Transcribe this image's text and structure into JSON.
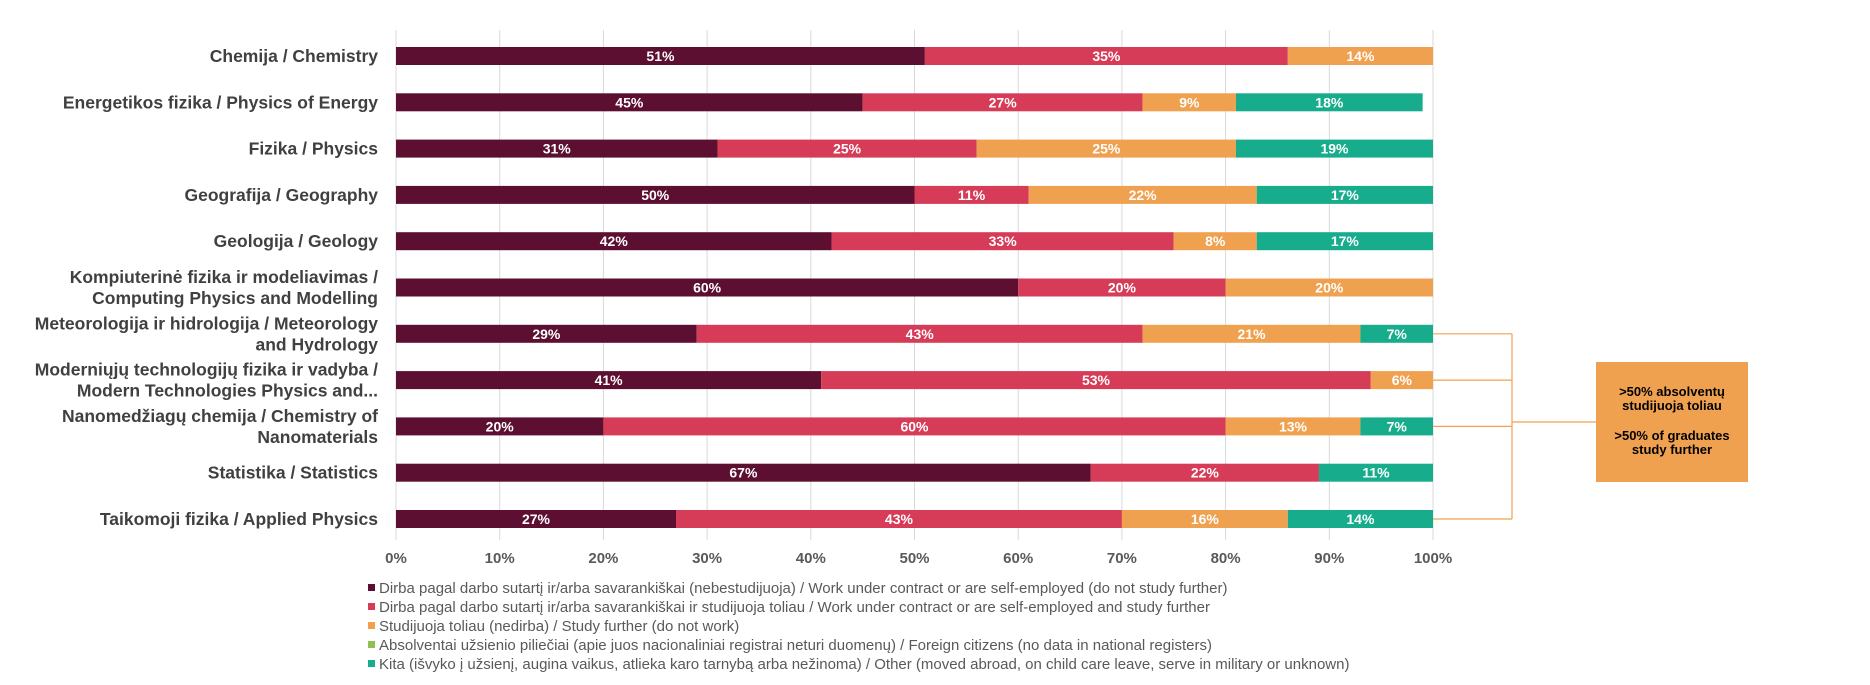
{
  "chart_data": {
    "type": "bar",
    "orientation": "horizontal",
    "stacked": "percent",
    "categories": [
      [
        "Chemija / Chemistry"
      ],
      [
        "Energetikos fizika / Physics of Energy"
      ],
      [
        "Fizika / Physics"
      ],
      [
        "Geografija / Geography"
      ],
      [
        "Geologija / Geology"
      ],
      [
        "Kompiuterinė fizika ir modeliavimas /",
        "Computing Physics and Modelling"
      ],
      [
        "Meteorologija ir hidrologija / Meteorology",
        "and Hydrology"
      ],
      [
        "Moderniųjų technologijų fizika ir vadyba /",
        "Modern Technologies Physics and..."
      ],
      [
        "Nanomedžiagų chemija / Chemistry of",
        "Nanomaterials"
      ],
      [
        "Statistika / Statistics"
      ],
      [
        "Taikomoji fizika / Applied Physics"
      ]
    ],
    "series": [
      {
        "name": "Dirba pagal darbo sutartį ir/arba savarankiškai (nebestudijuoja) / Work under contract or are self-employed (do not study further)",
        "color": "#5c0f30",
        "values": [
          51,
          45,
          31,
          50,
          42,
          60,
          29,
          41,
          20,
          67,
          27
        ]
      },
      {
        "name": "Dirba pagal darbo sutartį ir/arba savarankiškai  ir studijuoja toliau / Work under contract or are self-employed and study further",
        "color": "#d63c57",
        "values": [
          35,
          27,
          25,
          11,
          33,
          20,
          43,
          53,
          60,
          22,
          43
        ]
      },
      {
        "name": "Studijuoja toliau (nedirba) / Study further (do not work)",
        "color": "#f0a150",
        "values": [
          14,
          9,
          25,
          22,
          8,
          20,
          21,
          6,
          13,
          0,
          16
        ]
      },
      {
        "name": "Absolventai užsienio piliečiai (apie juos nacionaliniai registrai neturi duomenų) / Foreign citizens (no data in national registers)",
        "color": "#8dc153",
        "values": [
          0,
          0,
          0,
          0,
          0,
          0,
          0,
          0,
          0,
          0,
          0
        ]
      },
      {
        "name": "Kita (išvyko į užsienį, augina vaikus, atlieka karo tarnybą arba nežinoma) / Other (moved abroad, on child care leave, serve in military or unknown)",
        "color": "#17ad8c",
        "values": [
          0,
          18,
          19,
          17,
          17,
          0,
          7,
          0,
          7,
          11,
          14
        ]
      }
    ],
    "bar_labels": [
      [
        "51%",
        "35%",
        "14%",
        "",
        ""
      ],
      [
        "45%",
        "27%",
        "9%",
        "",
        "18%"
      ],
      [
        "31%",
        "25%",
        "25%",
        "",
        "19%"
      ],
      [
        "50%",
        "11%",
        "22%",
        "",
        "17%"
      ],
      [
        "42%",
        "33%",
        "8%",
        "",
        "17%"
      ],
      [
        "60%",
        "20%",
        "20%",
        "",
        ""
      ],
      [
        "29%",
        "43%",
        "21%",
        "",
        "7%"
      ],
      [
        "41%",
        "53%",
        "6%",
        "",
        ""
      ],
      [
        "20%",
        "60%",
        "13%",
        "",
        "7%"
      ],
      [
        "67%",
        "22%",
        "",
        "",
        "11%"
      ],
      [
        "27%",
        "43%",
        "16%",
        "",
        "14%"
      ]
    ],
    "xlim": [
      0,
      100
    ],
    "xticks": [
      "0%",
      "10%",
      "20%",
      "30%",
      "40%",
      "50%",
      "60%",
      "70%",
      "80%",
      "90%",
      "100%"
    ],
    "grid": true,
    "legend_position": "bottom-left",
    "annotation": {
      "text_lt": [
        ">50% absolventų",
        "studijuoja toliau"
      ],
      "text_en": [
        ">50% of graduates",
        "study further"
      ],
      "color": "#f0a150",
      "bracket_categories": [
        6,
        7,
        8,
        10
      ]
    }
  }
}
